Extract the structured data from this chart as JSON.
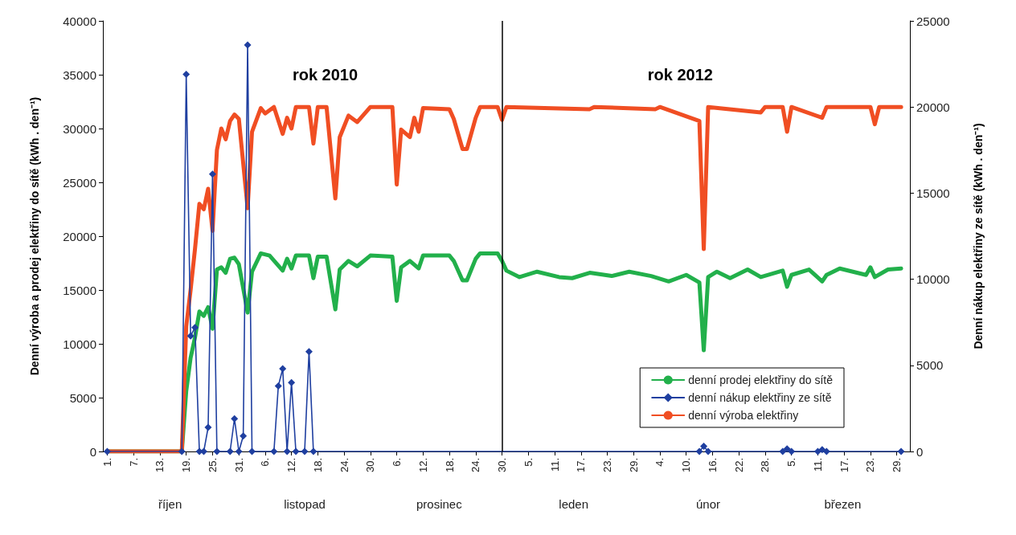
{
  "chart_data": {
    "type": "line",
    "ylabel": "Denní výroba a prodej elektřiny do sítě (kWh . den⁻¹)",
    "y2label": "Denní nákup elektřiny ze sítě (kWh . den⁻¹)",
    "annotations": [
      "rok 2010",
      "rok 2012",
      "říjen",
      "listopad",
      "prosinec",
      "leden",
      "únor",
      "březen"
    ],
    "xlim": [
      "2011-09-30",
      "2012-04-01"
    ],
    "xticks": [
      {
        "value": "2011-10-01",
        "label": "1."
      },
      {
        "value": "2011-10-07",
        "label": "7."
      },
      {
        "value": "2011-10-13",
        "label": "13."
      },
      {
        "value": "2011-10-19",
        "label": "19."
      },
      {
        "value": "2011-10-25",
        "label": "25."
      },
      {
        "value": "2011-10-31",
        "label": "31."
      },
      {
        "value": "2011-11-06",
        "label": "6."
      },
      {
        "value": "2011-11-12",
        "label": "12."
      },
      {
        "value": "2011-11-18",
        "label": "18."
      },
      {
        "value": "2011-11-24",
        "label": "24."
      },
      {
        "value": "2011-11-30",
        "label": "30."
      },
      {
        "value": "2011-12-06",
        "label": "6."
      },
      {
        "value": "2011-12-12",
        "label": "12."
      },
      {
        "value": "2011-12-18",
        "label": "18."
      },
      {
        "value": "2011-12-24",
        "label": "24."
      },
      {
        "value": "2011-12-30",
        "label": "30."
      },
      {
        "value": "2012-01-05",
        "label": "5."
      },
      {
        "value": "2012-01-11",
        "label": "11."
      },
      {
        "value": "2012-01-17",
        "label": "17."
      },
      {
        "value": "2012-01-23",
        "label": "23."
      },
      {
        "value": "2012-01-29",
        "label": "29."
      },
      {
        "value": "2012-02-04",
        "label": "4."
      },
      {
        "value": "2012-02-10",
        "label": "10."
      },
      {
        "value": "2012-02-16",
        "label": "16."
      },
      {
        "value": "2012-02-22",
        "label": "22."
      },
      {
        "value": "2012-02-28",
        "label": "28."
      },
      {
        "value": "2012-03-05",
        "label": "5."
      },
      {
        "value": "2012-03-11",
        "label": "11."
      },
      {
        "value": "2012-03-17",
        "label": "17."
      },
      {
        "value": "2012-03-23",
        "label": "23."
      },
      {
        "value": "2012-03-29",
        "label": "29."
      }
    ],
    "ylim": [
      0,
      40000
    ],
    "yticks": [
      0,
      5000,
      10000,
      15000,
      20000,
      25000,
      30000,
      35000,
      40000
    ],
    "y2lim": [
      0,
      25000
    ],
    "y2ticks": [
      0,
      5000,
      10000,
      15000,
      20000,
      25000
    ],
    "ref_lines": [
      {
        "axis": "x",
        "value": "2011-12-30",
        "color": "#000000"
      }
    ],
    "legend": "bottom right",
    "series": [
      {
        "name": "denní prodej elektřiny do sítě",
        "color": "#22b04b",
        "marker": "none",
        "x": [
          "2011-10-01",
          "2011-10-18",
          "2011-10-19",
          "2011-10-20",
          "2011-10-21",
          "2011-10-22",
          "2011-10-23",
          "2011-10-24",
          "2011-10-25",
          "2011-10-26",
          "2011-10-27",
          "2011-10-28",
          "2011-10-29",
          "2011-10-30",
          "2011-10-31",
          "2011-11-02",
          "2011-11-03",
          "2011-11-05",
          "2011-11-07",
          "2011-11-10",
          "2011-11-11",
          "2011-11-12",
          "2011-11-13",
          "2011-11-16",
          "2011-11-17",
          "2011-11-18",
          "2011-11-20",
          "2011-11-22",
          "2011-11-23",
          "2011-11-25",
          "2011-11-27",
          "2011-11-30",
          "2011-12-05",
          "2011-12-06",
          "2011-12-07",
          "2011-12-09",
          "2011-12-11",
          "2011-12-12",
          "2011-12-18",
          "2011-12-19",
          "2011-12-21",
          "2011-12-22",
          "2011-12-24",
          "2011-12-25",
          "2011-12-29",
          "2011-12-30",
          "2011-12-31",
          "2012-01-03",
          "2012-01-07",
          "2012-01-12",
          "2012-01-15",
          "2012-01-19",
          "2012-01-24",
          "2012-01-28",
          "2012-02-02",
          "2012-02-06",
          "2012-02-10",
          "2012-02-13",
          "2012-02-14",
          "2012-02-15",
          "2012-02-17",
          "2012-02-20",
          "2012-02-24",
          "2012-02-27",
          "2012-03-03",
          "2012-03-04",
          "2012-03-05",
          "2012-03-09",
          "2012-03-12",
          "2012-03-13",
          "2012-03-16",
          "2012-03-22",
          "2012-03-23",
          "2012-03-24",
          "2012-03-27",
          "2012-03-30"
        ],
        "values": [
          0,
          0,
          5600,
          8700,
          10600,
          13000,
          12600,
          13400,
          11400,
          16900,
          17100,
          16600,
          17900,
          18000,
          17400,
          12900,
          16700,
          18400,
          18200,
          16800,
          17900,
          17000,
          18200,
          18200,
          16100,
          18100,
          18100,
          13200,
          16900,
          17700,
          17200,
          18200,
          18100,
          14000,
          17100,
          17700,
          17000,
          18200,
          18200,
          17700,
          15900,
          15900,
          17900,
          18400,
          18400,
          17700,
          16800,
          16200,
          16700,
          16200,
          16100,
          16600,
          16300,
          16700,
          16300,
          15800,
          16400,
          15700,
          9400,
          16200,
          16700,
          16100,
          16900,
          16200,
          16800,
          15300,
          16400,
          16900,
          15800,
          16400,
          17000,
          16400,
          17100,
          16200,
          16900,
          17000
        ]
      },
      {
        "name": "denní nákup elektřiny ze sítě",
        "color": "#1f3fa0",
        "marker": "diamond",
        "axis": "y2",
        "x": [
          "2011-10-01",
          "2011-10-18",
          "2011-10-19",
          "2011-10-20",
          "2011-10-21",
          "2011-10-22",
          "2011-10-23",
          "2011-10-24",
          "2011-10-25",
          "2011-10-26",
          "2011-10-29",
          "2011-10-30",
          "2011-10-31",
          "2011-11-01",
          "2011-11-02",
          "2011-11-03",
          "2011-11-08",
          "2011-11-09",
          "2011-11-10",
          "2011-11-11",
          "2011-11-12",
          "2011-11-13",
          "2011-11-15",
          "2011-11-16",
          "2011-11-17",
          "2012-02-13",
          "2012-02-14",
          "2012-02-15",
          "2012-03-03",
          "2012-03-04",
          "2012-03-05",
          "2012-03-11",
          "2012-03-12",
          "2012-03-13",
          "2012-03-30"
        ],
        "values": [
          0,
          0,
          21900,
          6700,
          7200,
          0,
          0,
          1400,
          16100,
          0,
          0,
          1900,
          0,
          900,
          23600,
          0,
          0,
          3800,
          4800,
          0,
          4000,
          0,
          0,
          5800,
          0,
          0,
          300,
          0,
          0,
          150,
          0,
          0,
          100,
          0,
          0
        ]
      },
      {
        "name": "denní výroba elektřiny",
        "color": "#f04e23",
        "marker": "none",
        "x": [
          "2011-10-01",
          "2011-10-18",
          "2011-10-19",
          "2011-10-20",
          "2011-10-21",
          "2011-10-22",
          "2011-10-23",
          "2011-10-24",
          "2011-10-25",
          "2011-10-26",
          "2011-10-27",
          "2011-10-28",
          "2011-10-29",
          "2011-10-30",
          "2011-10-31",
          "2011-11-02",
          "2011-11-03",
          "2011-11-05",
          "2011-11-06",
          "2011-11-08",
          "2011-11-10",
          "2011-11-11",
          "2011-11-12",
          "2011-11-13",
          "2011-11-16",
          "2011-11-17",
          "2011-11-18",
          "2011-11-20",
          "2011-11-22",
          "2011-11-23",
          "2011-11-25",
          "2011-11-27",
          "2011-11-30",
          "2011-12-05",
          "2011-12-06",
          "2011-12-07",
          "2011-12-09",
          "2011-12-10",
          "2011-12-11",
          "2011-12-12",
          "2011-12-18",
          "2011-12-19",
          "2011-12-21",
          "2011-12-22",
          "2011-12-24",
          "2011-12-25",
          "2011-12-29",
          "2011-12-30",
          "2011-12-31",
          "2012-01-19",
          "2012-01-20",
          "2012-02-03",
          "2012-02-04",
          "2012-02-13",
          "2012-02-14",
          "2012-02-15",
          "2012-02-27",
          "2012-02-28",
          "2012-03-03",
          "2012-03-04",
          "2012-03-05",
          "2012-03-12",
          "2012-03-13",
          "2012-03-23",
          "2012-03-24",
          "2012-03-25",
          "2012-03-30"
        ],
        "values": [
          0,
          0,
          11600,
          15000,
          18800,
          23000,
          22500,
          24400,
          20500,
          28000,
          30000,
          29000,
          30700,
          31300,
          30900,
          22600,
          29700,
          31900,
          31400,
          32000,
          29500,
          31000,
          30000,
          32000,
          32000,
          28600,
          32000,
          32000,
          23500,
          29200,
          31200,
          30600,
          32000,
          32000,
          24800,
          29900,
          29200,
          31000,
          29700,
          31900,
          31800,
          30900,
          28100,
          28100,
          31000,
          32000,
          32000,
          30800,
          32000,
          31800,
          32000,
          31800,
          32000,
          30700,
          18800,
          32000,
          31500,
          32000,
          32000,
          29700,
          32000,
          31000,
          32000,
          32000,
          30400,
          32000,
          32000
        ]
      }
    ]
  }
}
